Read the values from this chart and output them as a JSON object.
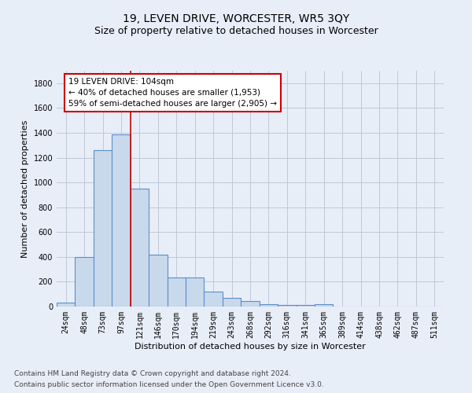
{
  "title": "19, LEVEN DRIVE, WORCESTER, WR5 3QY",
  "subtitle": "Size of property relative to detached houses in Worcester",
  "xlabel": "Distribution of detached houses by size in Worcester",
  "ylabel": "Number of detached properties",
  "footer": "Contains HM Land Registry data © Crown copyright and database right 2024.\nContains public sector information licensed under the Open Government Licence v3.0.",
  "categories": [
    "24sqm",
    "48sqm",
    "73sqm",
    "97sqm",
    "121sqm",
    "146sqm",
    "170sqm",
    "194sqm",
    "219sqm",
    "243sqm",
    "268sqm",
    "292sqm",
    "316sqm",
    "341sqm",
    "365sqm",
    "389sqm",
    "414sqm",
    "438sqm",
    "462sqm",
    "487sqm",
    "511sqm"
  ],
  "bar_values": [
    30,
    400,
    1260,
    1390,
    950,
    415,
    235,
    235,
    120,
    70,
    42,
    18,
    15,
    15,
    18,
    0,
    0,
    0,
    0,
    0,
    0
  ],
  "bar_color": "#c9d9ec",
  "bar_edge_color": "#5b8fc9",
  "bar_edge_width": 0.8,
  "vline_color": "#cc0000",
  "annotation_text": "19 LEVEN DRIVE: 104sqm\n← 40% of detached houses are smaller (1,953)\n59% of semi-detached houses are larger (2,905) →",
  "annotation_box_color": "#ffffff",
  "annotation_box_edge": "#cc0000",
  "ylim": [
    0,
    1900
  ],
  "yticks": [
    0,
    200,
    400,
    600,
    800,
    1000,
    1200,
    1400,
    1600,
    1800
  ],
  "grid_color": "#c0c8d8",
  "bg_color": "#e8eef8",
  "title_fontsize": 10,
  "subtitle_fontsize": 9,
  "ylabel_fontsize": 8,
  "xlabel_fontsize": 8,
  "tick_fontsize": 7,
  "annotation_fontsize": 7.5,
  "footer_fontsize": 6.5
}
